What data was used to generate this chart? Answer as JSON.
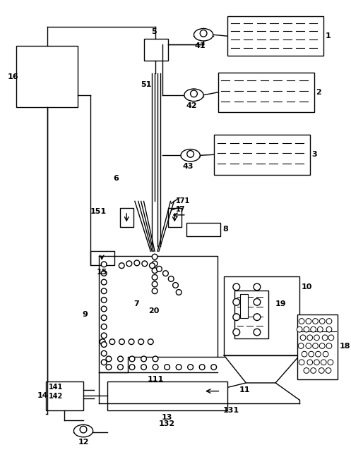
{
  "bg_color": "#ffffff",
  "line_color": "#000000",
  "fig_width": 4.97,
  "fig_height": 6.41,
  "dpi": 100
}
